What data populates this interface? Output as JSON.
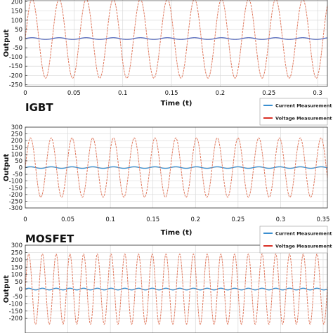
{
  "chart_data": [
    {
      "type": "line",
      "title": "",
      "xlabel": "Time (t)",
      "ylabel": "Output",
      "xlim": [
        0,
        0.31
      ],
      "ylim": [
        -260,
        210
      ],
      "x_ticks": [
        "0",
        "0.05",
        "0.1",
        "0.15",
        "0.2",
        "0.25",
        "0.3"
      ],
      "x_tick_values": [
        0,
        0.05,
        0.1,
        0.15,
        0.2,
        0.25,
        0.3
      ],
      "y_ticks": [
        "200",
        "150",
        "100",
        "50",
        "0",
        "-50",
        "-100",
        "-150",
        "-200",
        "-250"
      ],
      "y_tick_values": [
        200,
        150,
        100,
        50,
        0,
        -50,
        -100,
        -150,
        -200,
        -250
      ],
      "grid": true,
      "legend": [],
      "series": [
        {
          "role": "voltage",
          "color": "#e07a5f",
          "waveform": "sine",
          "amplitude": 215,
          "frequency_hz": 36,
          "offset": 0
        },
        {
          "role": "current",
          "color": "#5b6fbf",
          "waveform": "sine",
          "amplitude": 5,
          "frequency_hz": 36,
          "offset": 0
        }
      ]
    },
    {
      "type": "line",
      "title": "IGBT",
      "xlabel": "Time (t)",
      "ylabel": "Output",
      "xlim": [
        0,
        0.355
      ],
      "ylim": [
        -300,
        300
      ],
      "x_ticks": [
        "0",
        "0.05",
        "0.1",
        "0.15",
        "0.2",
        "0.25",
        "0.3",
        "0.35"
      ],
      "x_tick_values": [
        0,
        0.05,
        0.1,
        0.15,
        0.2,
        0.25,
        0.3,
        0.35
      ],
      "y_ticks": [
        "300",
        "250",
        "200",
        "150",
        "100",
        "50",
        "0",
        "-50",
        "-100",
        "-150",
        "-200",
        "-250",
        "-300"
      ],
      "y_tick_values": [
        300,
        250,
        200,
        150,
        100,
        50,
        0,
        -50,
        -100,
        -150,
        -200,
        -250,
        -300
      ],
      "grid": true,
      "legend": [
        "Current Measurement",
        "Voltage Measurement"
      ],
      "series": [
        {
          "name": "Current Measurement",
          "color": "#3b8fd0",
          "waveform": "sine",
          "amplitude": 6,
          "frequency_hz": 41,
          "offset": 0
        },
        {
          "name": "Voltage Measurement",
          "color": "#e07a5f",
          "waveform": "sine",
          "amplitude": 220,
          "frequency_hz": 41,
          "offset": 0
        }
      ]
    },
    {
      "type": "line",
      "title": "MOSFET",
      "xlabel": "",
      "ylabel": "Output",
      "xlim": [
        0,
        0.355
      ],
      "ylim": [
        -300,
        300
      ],
      "x_ticks": [],
      "x_tick_values": [],
      "y_ticks": [
        "300",
        "250",
        "200",
        "150",
        "100",
        "50",
        "0",
        "-50",
        "-100",
        "-150",
        "-200"
      ],
      "y_tick_values": [
        300,
        250,
        200,
        150,
        100,
        50,
        0,
        -50,
        -100,
        -150,
        -200
      ],
      "grid": true,
      "legend": [
        "Current Measurement",
        "Voltage Measurement"
      ],
      "series": [
        {
          "name": "Current Measurement",
          "color": "#3b8fd0",
          "waveform": "sine",
          "amplitude": 6,
          "frequency_hz": 62,
          "offset": 0
        },
        {
          "name": "Voltage Measurement",
          "color": "#e07a5f",
          "waveform": "sine",
          "amplitude": 240,
          "frequency_hz": 62,
          "offset": 0
        }
      ]
    }
  ],
  "legend_colors": {
    "current": "#3b8fd0",
    "voltage": "#d93025"
  }
}
